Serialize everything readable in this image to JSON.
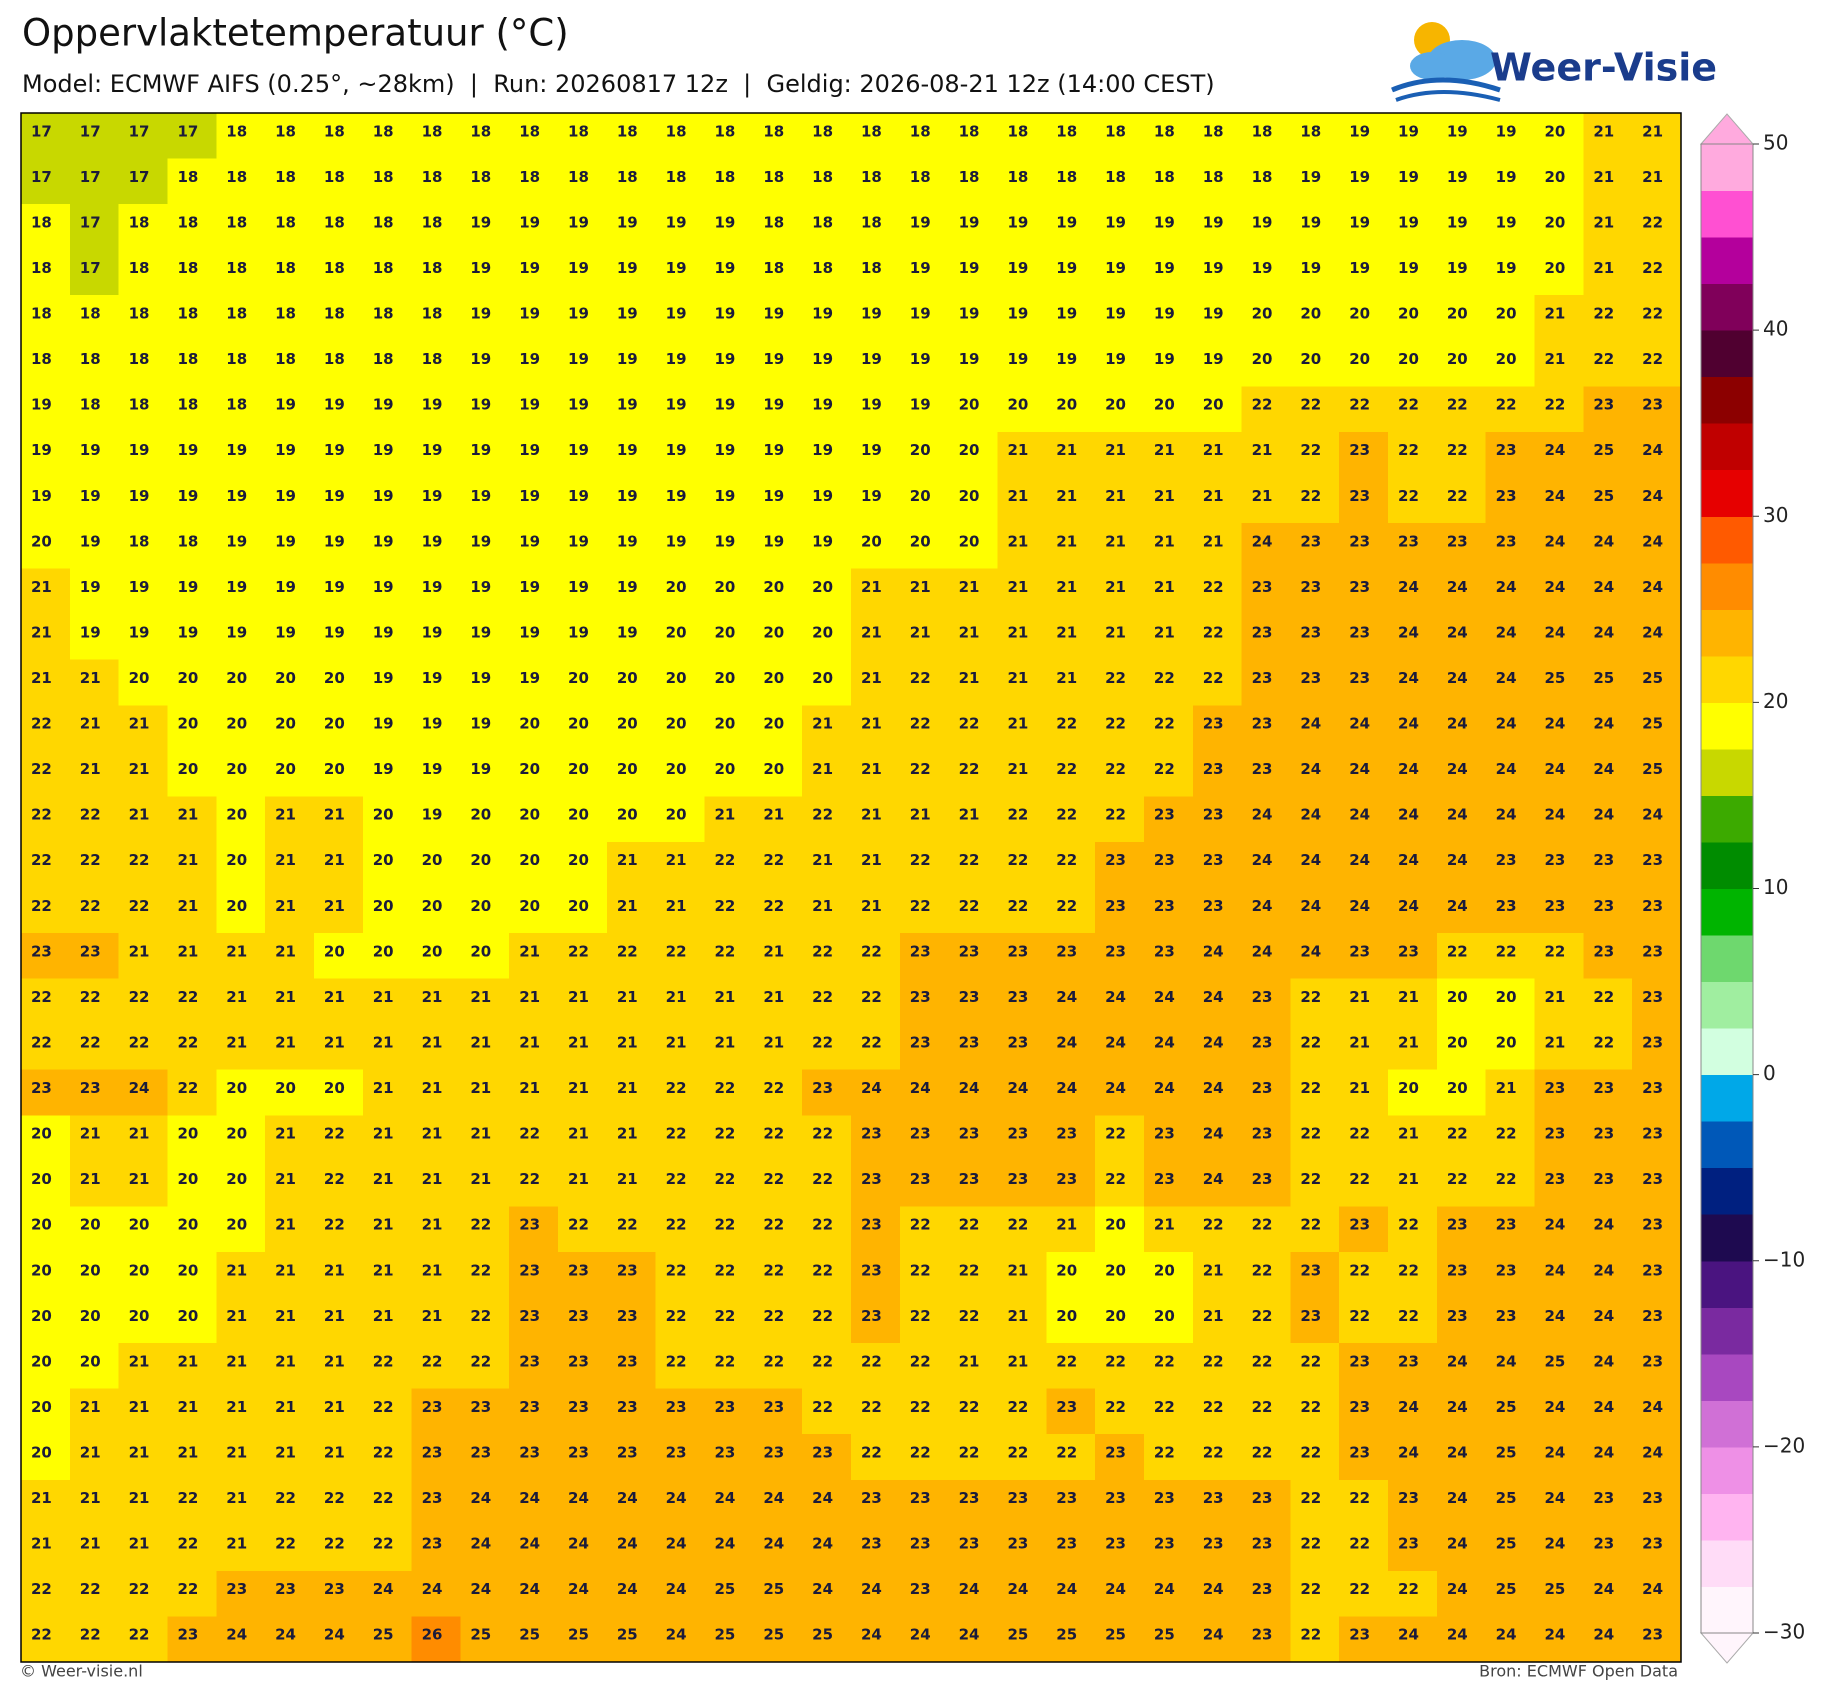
{
  "header": {
    "title": "Oppervlaktetemperatuur (°C)",
    "subtitle": "Model: ECMWF AIFS (0.25°, ~28km)  |  Run: 20260817 12z  |  Geldig: 2026-08-21 12z (14:00 CEST)",
    "logo": "Weer-Visie"
  },
  "chart_data": {
    "type": "heatmap",
    "values": [
      [
        17,
        17,
        17,
        17,
        18,
        18,
        18,
        18,
        18,
        18,
        18,
        18,
        18,
        18,
        18,
        18,
        18,
        18,
        18,
        18,
        18,
        18,
        18,
        18,
        18,
        18,
        18,
        19,
        19,
        19,
        19,
        20,
        21,
        21
      ],
      [
        17,
        17,
        17,
        18,
        18,
        18,
        18,
        18,
        18,
        18,
        18,
        18,
        18,
        18,
        18,
        18,
        18,
        18,
        18,
        18,
        18,
        18,
        18,
        18,
        18,
        18,
        19,
        19,
        19,
        19,
        19,
        20,
        21,
        21
      ],
      [
        18,
        17,
        18,
        18,
        18,
        18,
        18,
        18,
        18,
        19,
        19,
        19,
        19,
        19,
        19,
        18,
        18,
        18,
        19,
        19,
        19,
        19,
        19,
        19,
        19,
        19,
        19,
        19,
        19,
        19,
        19,
        20,
        21,
        22
      ],
      [
        18,
        17,
        18,
        18,
        18,
        18,
        18,
        18,
        18,
        19,
        19,
        19,
        19,
        19,
        19,
        18,
        18,
        18,
        19,
        19,
        19,
        19,
        19,
        19,
        19,
        19,
        19,
        19,
        19,
        19,
        19,
        20,
        21,
        22
      ],
      [
        18,
        18,
        18,
        18,
        18,
        18,
        18,
        18,
        18,
        19,
        19,
        19,
        19,
        19,
        19,
        19,
        19,
        19,
        19,
        19,
        19,
        19,
        19,
        19,
        19,
        20,
        20,
        20,
        20,
        20,
        20,
        21,
        22,
        22
      ],
      [
        18,
        18,
        18,
        18,
        18,
        18,
        18,
        18,
        18,
        19,
        19,
        19,
        19,
        19,
        19,
        19,
        19,
        19,
        19,
        19,
        19,
        19,
        19,
        19,
        19,
        20,
        20,
        20,
        20,
        20,
        20,
        21,
        22,
        22
      ],
      [
        19,
        18,
        18,
        18,
        18,
        19,
        19,
        19,
        19,
        19,
        19,
        19,
        19,
        19,
        19,
        19,
        19,
        19,
        19,
        20,
        20,
        20,
        20,
        20,
        20,
        22,
        22,
        22,
        22,
        22,
        22,
        22,
        23,
        23
      ],
      [
        19,
        19,
        19,
        19,
        19,
        19,
        19,
        19,
        19,
        19,
        19,
        19,
        19,
        19,
        19,
        19,
        19,
        19,
        20,
        20,
        21,
        21,
        21,
        21,
        21,
        21,
        22,
        23,
        22,
        22,
        23,
        24,
        25,
        24
      ],
      [
        19,
        19,
        19,
        19,
        19,
        19,
        19,
        19,
        19,
        19,
        19,
        19,
        19,
        19,
        19,
        19,
        19,
        19,
        20,
        20,
        21,
        21,
        21,
        21,
        21,
        21,
        22,
        23,
        22,
        22,
        23,
        24,
        25,
        24
      ],
      [
        20,
        19,
        18,
        18,
        19,
        19,
        19,
        19,
        19,
        19,
        19,
        19,
        19,
        19,
        19,
        19,
        19,
        20,
        20,
        20,
        21,
        21,
        21,
        21,
        21,
        24,
        23,
        23,
        23,
        23,
        23,
        24,
        24,
        24
      ],
      [
        21,
        19,
        19,
        19,
        19,
        19,
        19,
        19,
        19,
        19,
        19,
        19,
        19,
        20,
        20,
        20,
        20,
        21,
        21,
        21,
        21,
        21,
        21,
        21,
        22,
        23,
        23,
        23,
        24,
        24,
        24,
        24,
        24,
        24
      ],
      [
        21,
        19,
        19,
        19,
        19,
        19,
        19,
        19,
        19,
        19,
        19,
        19,
        19,
        20,
        20,
        20,
        20,
        21,
        21,
        21,
        21,
        21,
        21,
        21,
        22,
        23,
        23,
        23,
        24,
        24,
        24,
        24,
        24,
        24
      ],
      [
        21,
        21,
        20,
        20,
        20,
        20,
        20,
        19,
        19,
        19,
        19,
        20,
        20,
        20,
        20,
        20,
        20,
        21,
        22,
        21,
        21,
        21,
        22,
        22,
        22,
        23,
        23,
        23,
        24,
        24,
        24,
        25,
        25,
        25
      ],
      [
        22,
        21,
        21,
        20,
        20,
        20,
        20,
        19,
        19,
        19,
        20,
        20,
        20,
        20,
        20,
        20,
        21,
        21,
        22,
        22,
        21,
        22,
        22,
        22,
        23,
        23,
        24,
        24,
        24,
        24,
        24,
        24,
        24,
        25
      ],
      [
        22,
        21,
        21,
        20,
        20,
        20,
        20,
        19,
        19,
        19,
        20,
        20,
        20,
        20,
        20,
        20,
        21,
        21,
        22,
        22,
        21,
        22,
        22,
        22,
        23,
        23,
        24,
        24,
        24,
        24,
        24,
        24,
        24,
        25
      ],
      [
        22,
        22,
        21,
        21,
        20,
        21,
        21,
        20,
        19,
        20,
        20,
        20,
        20,
        20,
        21,
        21,
        22,
        21,
        21,
        21,
        22,
        22,
        22,
        23,
        23,
        24,
        24,
        24,
        24,
        24,
        24,
        24,
        24,
        24
      ],
      [
        22,
        22,
        22,
        21,
        20,
        21,
        21,
        20,
        20,
        20,
        20,
        20,
        21,
        21,
        22,
        22,
        21,
        21,
        22,
        22,
        22,
        22,
        23,
        23,
        23,
        24,
        24,
        24,
        24,
        24,
        23,
        23,
        23,
        23
      ],
      [
        22,
        22,
        22,
        21,
        20,
        21,
        21,
        20,
        20,
        20,
        20,
        20,
        21,
        21,
        22,
        22,
        21,
        21,
        22,
        22,
        22,
        22,
        23,
        23,
        23,
        24,
        24,
        24,
        24,
        24,
        23,
        23,
        23,
        23
      ],
      [
        23,
        23,
        21,
        21,
        21,
        21,
        20,
        20,
        20,
        20,
        21,
        22,
        22,
        22,
        22,
        21,
        22,
        22,
        23,
        23,
        23,
        23,
        23,
        23,
        24,
        24,
        24,
        23,
        23,
        22,
        22,
        22,
        23,
        23
      ],
      [
        22,
        22,
        22,
        22,
        21,
        21,
        21,
        21,
        21,
        21,
        21,
        21,
        21,
        21,
        21,
        21,
        22,
        22,
        23,
        23,
        23,
        24,
        24,
        24,
        24,
        23,
        22,
        21,
        21,
        20,
        20,
        21,
        22,
        23
      ],
      [
        22,
        22,
        22,
        22,
        21,
        21,
        21,
        21,
        21,
        21,
        21,
        21,
        21,
        21,
        21,
        21,
        22,
        22,
        23,
        23,
        23,
        24,
        24,
        24,
        24,
        23,
        22,
        21,
        21,
        20,
        20,
        21,
        22,
        23
      ],
      [
        23,
        23,
        24,
        22,
        20,
        20,
        20,
        21,
        21,
        21,
        21,
        21,
        21,
        22,
        22,
        22,
        23,
        24,
        24,
        24,
        24,
        24,
        24,
        24,
        24,
        23,
        22,
        21,
        20,
        20,
        21,
        23,
        23,
        23
      ],
      [
        20,
        21,
        21,
        20,
        20,
        21,
        22,
        21,
        21,
        21,
        22,
        21,
        21,
        22,
        22,
        22,
        22,
        23,
        23,
        23,
        23,
        23,
        22,
        23,
        24,
        23,
        22,
        22,
        21,
        22,
        22,
        23,
        23,
        23
      ],
      [
        20,
        21,
        21,
        20,
        20,
        21,
        22,
        21,
        21,
        21,
        22,
        21,
        21,
        22,
        22,
        22,
        22,
        23,
        23,
        23,
        23,
        23,
        22,
        23,
        24,
        23,
        22,
        22,
        21,
        22,
        22,
        23,
        23,
        23
      ],
      [
        20,
        20,
        20,
        20,
        20,
        21,
        22,
        21,
        21,
        22,
        23,
        22,
        22,
        22,
        22,
        22,
        22,
        23,
        22,
        22,
        22,
        21,
        20,
        21,
        22,
        22,
        22,
        23,
        22,
        23,
        23,
        24,
        24,
        23
      ],
      [
        20,
        20,
        20,
        20,
        21,
        21,
        21,
        21,
        21,
        22,
        23,
        23,
        23,
        22,
        22,
        22,
        22,
        23,
        22,
        22,
        21,
        20,
        20,
        20,
        21,
        22,
        23,
        22,
        22,
        23,
        23,
        24,
        24,
        23
      ],
      [
        20,
        20,
        20,
        20,
        21,
        21,
        21,
        21,
        21,
        22,
        23,
        23,
        23,
        22,
        22,
        22,
        22,
        23,
        22,
        22,
        21,
        20,
        20,
        20,
        21,
        22,
        23,
        22,
        22,
        23,
        23,
        24,
        24,
        23
      ],
      [
        20,
        20,
        21,
        21,
        21,
        21,
        21,
        22,
        22,
        22,
        23,
        23,
        23,
        22,
        22,
        22,
        22,
        22,
        22,
        21,
        21,
        22,
        22,
        22,
        22,
        22,
        22,
        23,
        23,
        24,
        24,
        25,
        24,
        23
      ],
      [
        20,
        21,
        21,
        21,
        21,
        21,
        21,
        22,
        23,
        23,
        23,
        23,
        23,
        23,
        23,
        23,
        22,
        22,
        22,
        22,
        22,
        23,
        22,
        22,
        22,
        22,
        22,
        23,
        24,
        24,
        25,
        24,
        24,
        24
      ],
      [
        20,
        21,
        21,
        21,
        21,
        21,
        21,
        22,
        23,
        23,
        23,
        23,
        23,
        23,
        23,
        23,
        23,
        22,
        22,
        22,
        22,
        22,
        23,
        22,
        22,
        22,
        22,
        23,
        24,
        24,
        25,
        24,
        24,
        24
      ],
      [
        21,
        21,
        21,
        22,
        21,
        22,
        22,
        22,
        23,
        24,
        24,
        24,
        24,
        24,
        24,
        24,
        24,
        23,
        23,
        23,
        23,
        23,
        23,
        23,
        23,
        23,
        22,
        22,
        23,
        24,
        25,
        24,
        23,
        23
      ],
      [
        21,
        21,
        21,
        22,
        21,
        22,
        22,
        22,
        23,
        24,
        24,
        24,
        24,
        24,
        24,
        24,
        24,
        23,
        23,
        23,
        23,
        23,
        23,
        23,
        23,
        23,
        22,
        22,
        23,
        24,
        25,
        24,
        23,
        23
      ],
      [
        22,
        22,
        22,
        22,
        23,
        23,
        23,
        24,
        24,
        24,
        24,
        24,
        24,
        24,
        25,
        25,
        24,
        24,
        23,
        24,
        24,
        24,
        24,
        24,
        24,
        23,
        22,
        22,
        22,
        24,
        25,
        25,
        24,
        24
      ],
      [
        22,
        22,
        22,
        23,
        24,
        24,
        24,
        25,
        26,
        25,
        25,
        25,
        25,
        24,
        25,
        25,
        25,
        24,
        24,
        24,
        25,
        25,
        25,
        25,
        24,
        23,
        22,
        23,
        24,
        24,
        24,
        24,
        24,
        23
      ]
    ],
    "colorbar": {
      "lim": [
        -30,
        50
      ],
      "ticks": [
        50,
        40,
        30,
        20,
        10,
        0,
        {
          "value": -10,
          "label": "−10"
        },
        {
          "value": -20,
          "label": "−20"
        },
        {
          "value": -30,
          "label": "−30"
        }
      ],
      "colors": [
        "#fff5fc",
        "#ffdcf7",
        "#ffb4f0",
        "#ee90e6",
        "#d070d6",
        "#a848c0",
        "#7a2aa0",
        "#4a1480",
        "#1e0a50",
        "#002080",
        "#0058b8",
        "#00a8e8",
        "#d2ffe0",
        "#a0eea0",
        "#6ed86e",
        "#00b400",
        "#008c00",
        "#3caa00",
        "#c8d800",
        "#ffff00",
        "#ffd700",
        "#ffb400",
        "#ff8c00",
        "#ff5a00",
        "#e60000",
        "#c00000",
        "#8c0000",
        "#500030",
        "#80005a",
        "#b4009c",
        "#ff50d2",
        "#ffaade"
      ]
    }
  },
  "footer": {
    "left": "© Weer-visie.nl",
    "right": "Bron: ECMWF Open Data"
  }
}
